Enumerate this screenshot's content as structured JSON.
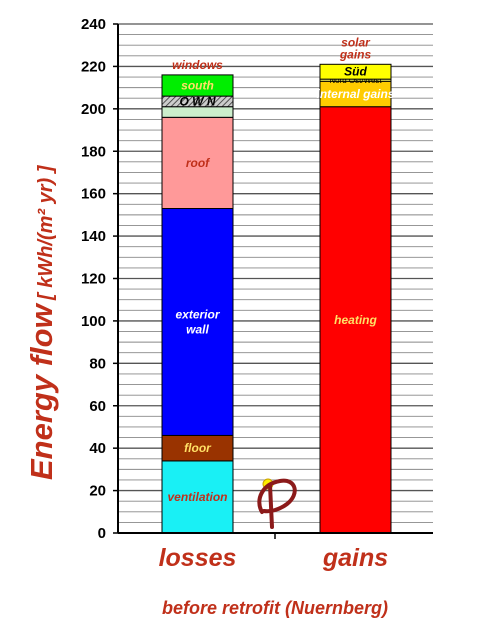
{
  "chart_data": {
    "type": "bar",
    "stacked": true,
    "title": "",
    "subtitle": "before retrofit (Nuernberg)",
    "ylabel": "Energy flow",
    "yunit": "[  kWh/(m² yr)  ]",
    "ylim": [
      0,
      240
    ],
    "yticks": [
      0,
      20,
      40,
      60,
      80,
      100,
      120,
      140,
      160,
      180,
      200,
      220,
      240
    ],
    "grid": true,
    "categories": [
      "losses",
      "gains"
    ],
    "stacks": [
      {
        "category": "losses",
        "segments": [
          {
            "label": "ventilation",
            "value": 34,
            "color": "#19f0f5",
            "text_color": "#c0301a"
          },
          {
            "label": "floor",
            "value": 12,
            "color": "#993300",
            "text_color": "#ffe066"
          },
          {
            "label": "exterior wall",
            "value": 107,
            "color": "#0000ff",
            "text_color": "#ffffff"
          },
          {
            "label": "roof",
            "value": 43,
            "color": "#ff9999",
            "text_color": "#c0301a"
          },
          {
            "label": "",
            "value": 5,
            "color": "#cceecc"
          },
          {
            "label": "O W N",
            "value": 5,
            "color": "#bbbbbb",
            "hatched": true
          },
          {
            "label": "south",
            "value": 10,
            "color": "#00ee00",
            "text_color": "#ffe066"
          }
        ],
        "group_label": "windows",
        "group_label_color": "#c0301a"
      },
      {
        "category": "gains",
        "segments": [
          {
            "label": "heating",
            "value": 201,
            "color": "#ff0000",
            "text_color": "#ffe066"
          },
          {
            "label": "internal gains",
            "value": 12,
            "color": "#ffcc00",
            "text_color": "#ffffff"
          },
          {
            "label": "Nord   Ost/West",
            "value": 1,
            "color": "#ffff66"
          },
          {
            "label": "Süd",
            "value": 7,
            "color": "#ffff00"
          }
        ],
        "group_label": "solar gains",
        "group_label_color": "#c0301a"
      }
    ]
  }
}
